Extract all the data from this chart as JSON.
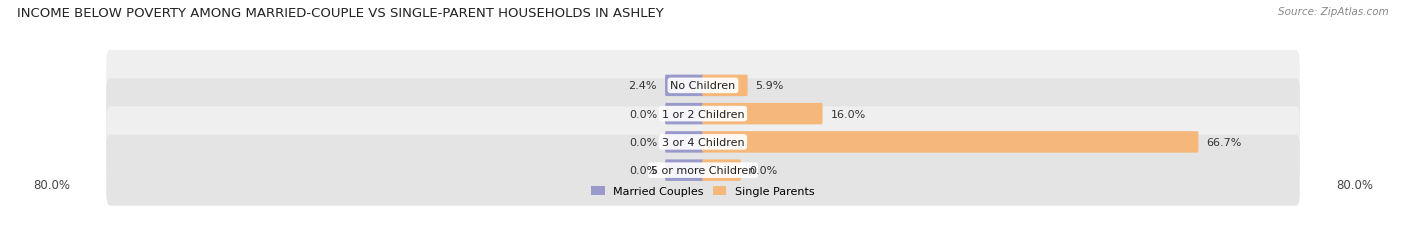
{
  "title": "INCOME BELOW POVERTY AMONG MARRIED-COUPLE VS SINGLE-PARENT HOUSEHOLDS IN ASHLEY",
  "source": "Source: ZipAtlas.com",
  "categories": [
    "No Children",
    "1 or 2 Children",
    "3 or 4 Children",
    "5 or more Children"
  ],
  "married_values": [
    2.4,
    0.0,
    0.0,
    0.0
  ],
  "single_values": [
    5.9,
    16.0,
    66.7,
    0.0
  ],
  "married_color": "#9999cc",
  "single_color": "#f5b87a",
  "row_bg_colors": [
    "#efefef",
    "#e4e4e4"
  ],
  "max_value": 80.0,
  "x_left_label": "80.0%",
  "x_right_label": "80.0%",
  "legend_married": "Married Couples",
  "legend_single": "Single Parents",
  "title_fontsize": 9.5,
  "axis_fontsize": 8.5,
  "label_fontsize": 8.0,
  "category_fontsize": 8.0,
  "min_bar_width": 5.0
}
